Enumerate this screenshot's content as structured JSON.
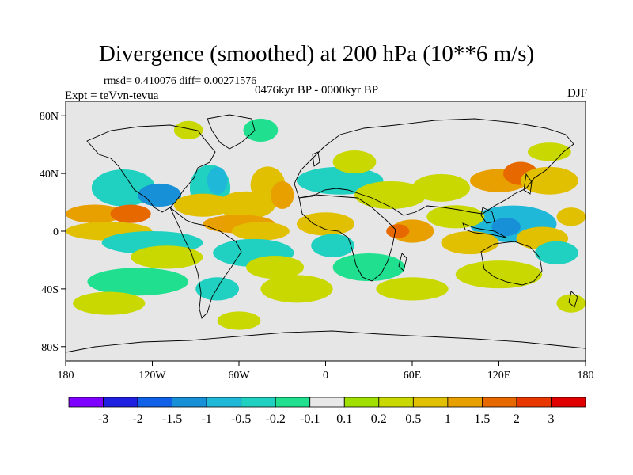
{
  "header": {
    "title": "Divergence (smoothed) at 200 hPa (10**6 m/s)",
    "stats": "rmsd= 0.410076 diff= 0.00271576",
    "experiment": "Expt = teVvn-tevua",
    "period": "0476kyr BP - 0000kyr BP",
    "season": "DJF"
  },
  "map": {
    "lon_range": [
      -180,
      180
    ],
    "lat_range": [
      -90,
      90
    ],
    "lon_ticks": [
      {
        "value": -180,
        "label": "180"
      },
      {
        "value": -120,
        "label": "120W"
      },
      {
        "value": -60,
        "label": "60W"
      },
      {
        "value": 0,
        "label": "0"
      },
      {
        "value": 60,
        "label": "60E"
      },
      {
        "value": 120,
        "label": "120E"
      },
      {
        "value": 180,
        "label": "180"
      }
    ],
    "lat_ticks": [
      {
        "value": 80,
        "label": "80N"
      },
      {
        "value": 40,
        "label": "40N"
      },
      {
        "value": 0,
        "label": "0"
      },
      {
        "value": -40,
        "label": "40S"
      },
      {
        "value": -80,
        "label": "80S"
      }
    ],
    "background_color": "#e6e6e6",
    "coastline_color": "#000000",
    "regions": [
      {
        "lon": -140,
        "lat": 30,
        "rx": 22,
        "ry": 8,
        "value": -0.5
      },
      {
        "lon": -115,
        "lat": 25,
        "rx": 15,
        "ry": 5,
        "value": -1.5
      },
      {
        "lon": -160,
        "lat": 12,
        "rx": 20,
        "ry": 4,
        "value": 1
      },
      {
        "lon": -135,
        "lat": 12,
        "rx": 14,
        "ry": 4,
        "value": 1.5
      },
      {
        "lon": -150,
        "lat": 0,
        "rx": 30,
        "ry": 4,
        "value": 0.5
      },
      {
        "lon": -120,
        "lat": -8,
        "rx": 35,
        "ry": 5,
        "value": -0.5
      },
      {
        "lon": -110,
        "lat": -18,
        "rx": 25,
        "ry": 5,
        "value": 0.2
      },
      {
        "lon": -130,
        "lat": -35,
        "rx": 35,
        "ry": 6,
        "value": -0.2
      },
      {
        "lon": -150,
        "lat": -50,
        "rx": 25,
        "ry": 5,
        "value": 0.2
      },
      {
        "lon": -80,
        "lat": 30,
        "rx": 14,
        "ry": 10,
        "value": -0.5
      },
      {
        "lon": -75,
        "lat": 35,
        "rx": 7,
        "ry": 6,
        "value": -1
      },
      {
        "lon": -85,
        "lat": 18,
        "rx": 20,
        "ry": 5,
        "value": 0.5
      },
      {
        "lon": -55,
        "lat": 18,
        "rx": 20,
        "ry": 6,
        "value": 0.5
      },
      {
        "lon": -60,
        "lat": 5,
        "rx": 25,
        "ry": 4,
        "value": 1
      },
      {
        "lon": -45,
        "lat": 0,
        "rx": 20,
        "ry": 4,
        "value": 0.5
      },
      {
        "lon": -40,
        "lat": 32,
        "rx": 12,
        "ry": 8,
        "value": 0.5
      },
      {
        "lon": -30,
        "lat": 25,
        "rx": 8,
        "ry": 6,
        "value": 1
      },
      {
        "lon": -50,
        "lat": -15,
        "rx": 28,
        "ry": 6,
        "value": -0.5
      },
      {
        "lon": -35,
        "lat": -25,
        "rx": 20,
        "ry": 5,
        "value": 0.2
      },
      {
        "lon": -75,
        "lat": -40,
        "rx": 15,
        "ry": 5,
        "value": -0.5
      },
      {
        "lon": -20,
        "lat": -40,
        "rx": 25,
        "ry": 6,
        "value": 0.2
      },
      {
        "lon": -60,
        "lat": -62,
        "rx": 15,
        "ry": 4,
        "value": 0.2
      },
      {
        "lon": -45,
        "lat": 70,
        "rx": 12,
        "ry": 5,
        "value": -0.2
      },
      {
        "lon": -95,
        "lat": 70,
        "rx": 10,
        "ry": 4,
        "value": 0.2
      },
      {
        "lon": 10,
        "lat": 35,
        "rx": 30,
        "ry": 6,
        "value": -0.5
      },
      {
        "lon": 20,
        "lat": 48,
        "rx": 15,
        "ry": 5,
        "value": 0.2
      },
      {
        "lon": 45,
        "lat": 25,
        "rx": 25,
        "ry": 6,
        "value": 0.2
      },
      {
        "lon": 0,
        "lat": 5,
        "rx": 20,
        "ry": 5,
        "value": 0.5
      },
      {
        "lon": 60,
        "lat": 0,
        "rx": 15,
        "ry": 5,
        "value": 1
      },
      {
        "lon": 50,
        "lat": 0,
        "rx": 8,
        "ry": 3,
        "value": 1.5
      },
      {
        "lon": 5,
        "lat": -10,
        "rx": 15,
        "ry": 5,
        "value": -0.5
      },
      {
        "lon": 30,
        "lat": -25,
        "rx": 25,
        "ry": 6,
        "value": -0.2
      },
      {
        "lon": 60,
        "lat": -40,
        "rx": 25,
        "ry": 5,
        "value": 0.2
      },
      {
        "lon": 80,
        "lat": 30,
        "rx": 20,
        "ry": 6,
        "value": 0.2
      },
      {
        "lon": 120,
        "lat": 35,
        "rx": 20,
        "ry": 5,
        "value": 1
      },
      {
        "lon": 135,
        "lat": 40,
        "rx": 12,
        "ry": 5,
        "value": 1.5
      },
      {
        "lon": 155,
        "lat": 35,
        "rx": 20,
        "ry": 6,
        "value": 0.5
      },
      {
        "lon": 155,
        "lat": 55,
        "rx": 15,
        "ry": 4,
        "value": 0.2
      },
      {
        "lon": 130,
        "lat": 5,
        "rx": 30,
        "ry": 8,
        "value": -1
      },
      {
        "lon": 125,
        "lat": 3,
        "rx": 10,
        "ry": 4,
        "value": -1.5
      },
      {
        "lon": 100,
        "lat": -8,
        "rx": 20,
        "ry": 5,
        "value": 0.5
      },
      {
        "lon": 150,
        "lat": -5,
        "rx": 18,
        "ry": 5,
        "value": 0.5
      },
      {
        "lon": 90,
        "lat": 10,
        "rx": 20,
        "ry": 5,
        "value": 0.2
      },
      {
        "lon": 120,
        "lat": -30,
        "rx": 30,
        "ry": 6,
        "value": 0.2
      },
      {
        "lon": 160,
        "lat": -15,
        "rx": 15,
        "ry": 5,
        "value": -0.5
      },
      {
        "lon": 170,
        "lat": -50,
        "rx": 10,
        "ry": 4,
        "value": 0.2
      },
      {
        "lon": 170,
        "lat": 10,
        "rx": 10,
        "ry": 4,
        "value": 0.5
      }
    ]
  },
  "colorbar": {
    "colors": [
      "#7f00ff",
      "#2020e0",
      "#1060e8",
      "#1890d8",
      "#20b8d8",
      "#20d0c0",
      "#20e090",
      "#e8e8e8",
      "#a0e000",
      "#c8d800",
      "#e0c000",
      "#e8a000",
      "#e86800",
      "#e83800",
      "#e00000"
    ],
    "labels": [
      "-3",
      "-2",
      "-1.5",
      "-1",
      "-0.5",
      "-0.2",
      "-0.1",
      "0.1",
      "0.2",
      "0.5",
      "1",
      "1.5",
      "2",
      "3"
    ]
  }
}
